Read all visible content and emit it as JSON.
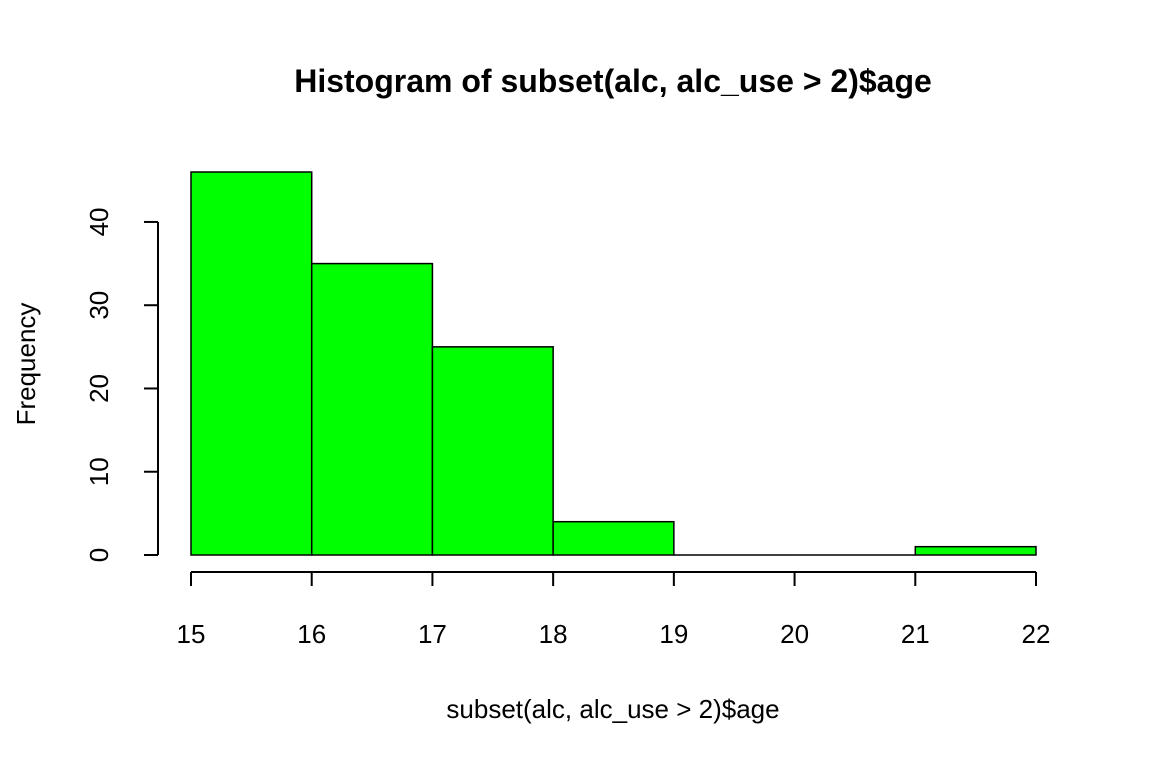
{
  "chart_data": {
    "type": "bar",
    "title": "Histogram of subset(alc, alc_use > 2)$age",
    "xlabel": "subset(alc, alc_use > 2)$age",
    "ylabel": "Frequency",
    "bins": [
      {
        "start": 15,
        "end": 16,
        "count": 46
      },
      {
        "start": 16,
        "end": 17,
        "count": 35
      },
      {
        "start": 17,
        "end": 18,
        "count": 25
      },
      {
        "start": 18,
        "end": 19,
        "count": 4
      },
      {
        "start": 19,
        "end": 20,
        "count": 0
      },
      {
        "start": 20,
        "end": 21,
        "count": 0
      },
      {
        "start": 21,
        "end": 22,
        "count": 1
      }
    ],
    "xlim": [
      15,
      22
    ],
    "ylim": [
      0,
      46
    ],
    "x_ticks": [
      "15",
      "16",
      "17",
      "18",
      "19",
      "20",
      "21",
      "22"
    ],
    "y_ticks": [
      "0",
      "10",
      "20",
      "30",
      "40"
    ],
    "bar_color": "#00ff00",
    "border_color": "#000000",
    "grid": false,
    "legend": "none"
  }
}
